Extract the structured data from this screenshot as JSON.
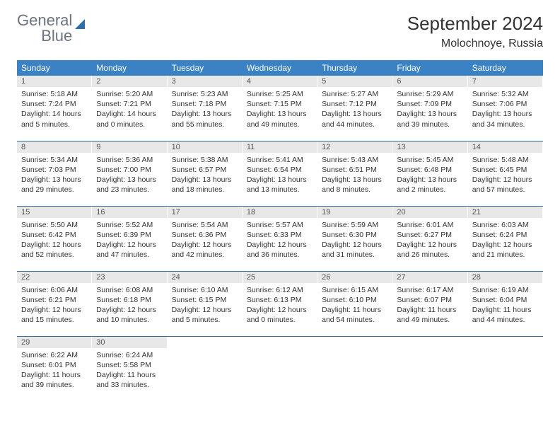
{
  "logo": {
    "line1": "General",
    "line2": "Blue"
  },
  "title": "September 2024",
  "location": "Molochnoye, Russia",
  "days_of_week": [
    "Sunday",
    "Monday",
    "Tuesday",
    "Wednesday",
    "Thursday",
    "Friday",
    "Saturday"
  ],
  "colors": {
    "header_bg": "#3b82c4",
    "header_text": "#ffffff",
    "daynum_bg": "#e8e8e8",
    "row_border": "#2e6fab",
    "text": "#333333"
  },
  "weeks": [
    [
      {
        "n": "1",
        "sunrise": "5:18 AM",
        "sunset": "7:24 PM",
        "dl": "14 hours and 5 minutes."
      },
      {
        "n": "2",
        "sunrise": "5:20 AM",
        "sunset": "7:21 PM",
        "dl": "14 hours and 0 minutes."
      },
      {
        "n": "3",
        "sunrise": "5:23 AM",
        "sunset": "7:18 PM",
        "dl": "13 hours and 55 minutes."
      },
      {
        "n": "4",
        "sunrise": "5:25 AM",
        "sunset": "7:15 PM",
        "dl": "13 hours and 49 minutes."
      },
      {
        "n": "5",
        "sunrise": "5:27 AM",
        "sunset": "7:12 PM",
        "dl": "13 hours and 44 minutes."
      },
      {
        "n": "6",
        "sunrise": "5:29 AM",
        "sunset": "7:09 PM",
        "dl": "13 hours and 39 minutes."
      },
      {
        "n": "7",
        "sunrise": "5:32 AM",
        "sunset": "7:06 PM",
        "dl": "13 hours and 34 minutes."
      }
    ],
    [
      {
        "n": "8",
        "sunrise": "5:34 AM",
        "sunset": "7:03 PM",
        "dl": "13 hours and 29 minutes."
      },
      {
        "n": "9",
        "sunrise": "5:36 AM",
        "sunset": "7:00 PM",
        "dl": "13 hours and 23 minutes."
      },
      {
        "n": "10",
        "sunrise": "5:38 AM",
        "sunset": "6:57 PM",
        "dl": "13 hours and 18 minutes."
      },
      {
        "n": "11",
        "sunrise": "5:41 AM",
        "sunset": "6:54 PM",
        "dl": "13 hours and 13 minutes."
      },
      {
        "n": "12",
        "sunrise": "5:43 AM",
        "sunset": "6:51 PM",
        "dl": "13 hours and 8 minutes."
      },
      {
        "n": "13",
        "sunrise": "5:45 AM",
        "sunset": "6:48 PM",
        "dl": "13 hours and 2 minutes."
      },
      {
        "n": "14",
        "sunrise": "5:48 AM",
        "sunset": "6:45 PM",
        "dl": "12 hours and 57 minutes."
      }
    ],
    [
      {
        "n": "15",
        "sunrise": "5:50 AM",
        "sunset": "6:42 PM",
        "dl": "12 hours and 52 minutes."
      },
      {
        "n": "16",
        "sunrise": "5:52 AM",
        "sunset": "6:39 PM",
        "dl": "12 hours and 47 minutes."
      },
      {
        "n": "17",
        "sunrise": "5:54 AM",
        "sunset": "6:36 PM",
        "dl": "12 hours and 42 minutes."
      },
      {
        "n": "18",
        "sunrise": "5:57 AM",
        "sunset": "6:33 PM",
        "dl": "12 hours and 36 minutes."
      },
      {
        "n": "19",
        "sunrise": "5:59 AM",
        "sunset": "6:30 PM",
        "dl": "12 hours and 31 minutes."
      },
      {
        "n": "20",
        "sunrise": "6:01 AM",
        "sunset": "6:27 PM",
        "dl": "12 hours and 26 minutes."
      },
      {
        "n": "21",
        "sunrise": "6:03 AM",
        "sunset": "6:24 PM",
        "dl": "12 hours and 21 minutes."
      }
    ],
    [
      {
        "n": "22",
        "sunrise": "6:06 AM",
        "sunset": "6:21 PM",
        "dl": "12 hours and 15 minutes."
      },
      {
        "n": "23",
        "sunrise": "6:08 AM",
        "sunset": "6:18 PM",
        "dl": "12 hours and 10 minutes."
      },
      {
        "n": "24",
        "sunrise": "6:10 AM",
        "sunset": "6:15 PM",
        "dl": "12 hours and 5 minutes."
      },
      {
        "n": "25",
        "sunrise": "6:12 AM",
        "sunset": "6:13 PM",
        "dl": "12 hours and 0 minutes."
      },
      {
        "n": "26",
        "sunrise": "6:15 AM",
        "sunset": "6:10 PM",
        "dl": "11 hours and 54 minutes."
      },
      {
        "n": "27",
        "sunrise": "6:17 AM",
        "sunset": "6:07 PM",
        "dl": "11 hours and 49 minutes."
      },
      {
        "n": "28",
        "sunrise": "6:19 AM",
        "sunset": "6:04 PM",
        "dl": "11 hours and 44 minutes."
      }
    ],
    [
      {
        "n": "29",
        "sunrise": "6:22 AM",
        "sunset": "6:01 PM",
        "dl": "11 hours and 39 minutes."
      },
      {
        "n": "30",
        "sunrise": "6:24 AM",
        "sunset": "5:58 PM",
        "dl": "11 hours and 33 minutes."
      },
      null,
      null,
      null,
      null,
      null
    ]
  ],
  "labels": {
    "sunrise": "Sunrise: ",
    "sunset": "Sunset: ",
    "daylight": "Daylight: "
  }
}
